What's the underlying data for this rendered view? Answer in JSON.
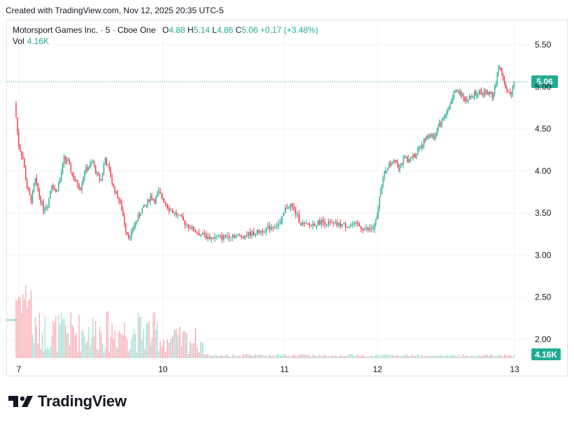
{
  "header": {
    "created_text": "Created with TradingView.com, Nov 12, 2025 20:35 UTC-5"
  },
  "legend": {
    "symbol": "Motorsport Games Inc. · 5 · Cboe One",
    "o_label": "O",
    "o_value": "4.88",
    "h_label": "H",
    "h_value": "5.14",
    "l_label": "L",
    "l_value": "4.86",
    "c_label": "C",
    "c_value": "5.06",
    "change": "+0.17 (+3.48%)",
    "vol_label": "Vol",
    "vol_value": "4.16K"
  },
  "colors": {
    "up": "#22ab94",
    "down": "#f23645",
    "grid": "#f0f3fa",
    "text": "#131722",
    "badge": "#22ab94"
  },
  "price_axis": {
    "ticks": [
      "5.50",
      "5.00",
      "4.50",
      "4.00",
      "3.50",
      "3.00",
      "2.50",
      "2.00"
    ],
    "last_price_label": "5.06",
    "volume_label": "4.16K"
  },
  "time_axis": {
    "ticks": [
      "7",
      "10",
      "11",
      "12",
      "13"
    ]
  },
  "logo": {
    "text": "TradingView"
  },
  "chart_data": {
    "type": "candlestick",
    "symbol": "Motorsport Games Inc.",
    "interval": "5",
    "exchange": "Cboe One",
    "y_range": [
      1.8,
      5.8
    ],
    "grid": true,
    "last_price": 5.06,
    "x_tick_labels": [
      "7",
      "10",
      "11",
      "12",
      "13"
    ],
    "days": [
      {
        "label": "7",
        "path": [
          4.8,
          4.3,
          4.15,
          3.8,
          3.65,
          3.9,
          3.7,
          3.55,
          3.6,
          3.85,
          3.75,
          3.9,
          4.15,
          4.1,
          3.95,
          3.85,
          3.8,
          4.0,
          4.05,
          4.1,
          3.95,
          3.9,
          4.15,
          4.0,
          3.8,
          3.7,
          3.55,
          3.3,
          3.2,
          3.35,
          3.45,
          3.55,
          3.6,
          3.7,
          3.65,
          3.75
        ]
      },
      {
        "label": "10",
        "path": [
          3.75,
          3.65,
          3.55,
          3.5,
          3.45,
          3.38,
          3.33,
          3.28,
          3.25,
          3.22,
          3.2,
          3.22,
          3.21,
          3.23,
          3.24,
          3.22,
          3.23,
          3.25,
          3.26,
          3.28,
          3.3,
          3.33,
          3.35,
          3.38
        ]
      },
      {
        "label": "11",
        "path": [
          3.38,
          3.55,
          3.6,
          3.5,
          3.38,
          3.35,
          3.36,
          3.38,
          3.4,
          3.38,
          3.37,
          3.36,
          3.36,
          3.35,
          3.36,
          3.36,
          3.32,
          3.3,
          3.33
        ]
      },
      {
        "label": "12",
        "path": [
          3.3,
          3.45,
          3.8,
          3.95,
          4.05,
          4.1,
          4.15,
          4.05,
          4.1,
          4.15,
          4.12,
          4.18,
          4.22,
          4.3,
          4.35,
          4.4,
          4.45,
          4.38,
          4.55,
          4.6,
          4.68,
          4.75,
          4.9,
          4.95,
          4.92,
          4.88,
          4.85,
          4.88,
          4.92,
          4.95,
          4.9,
          4.95,
          4.92,
          4.9,
          5.05,
          5.25,
          5.1,
          4.95,
          4.9,
          5.06
        ]
      }
    ],
    "volume": {
      "label": "Vol",
      "last": "4.16K"
    }
  }
}
